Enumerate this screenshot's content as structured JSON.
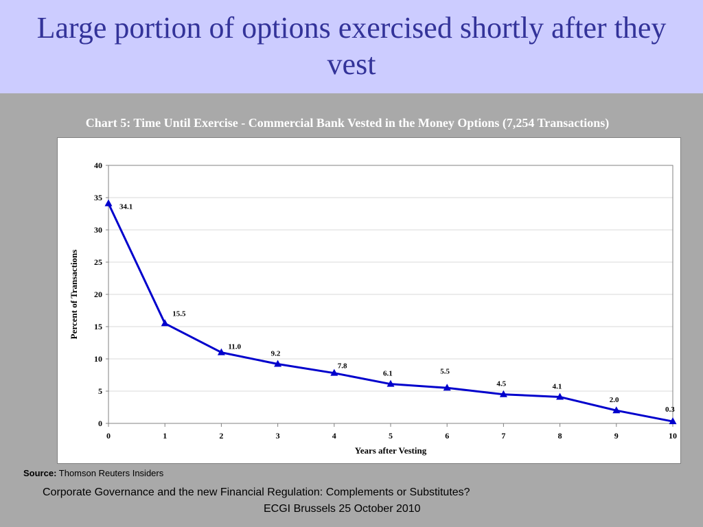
{
  "slide": {
    "title": "Large portion of options exercised shortly after they vest",
    "chart_caption": "Chart 5: Time Until Exercise - Commercial Bank Vested in the Money Options (7,254 Transactions)",
    "source_label": "Source:",
    "source_text": " Thomson Reuters Insiders",
    "footer_line1": "Corporate Governance and the new Financial Regulation: Complements or Substitutes?",
    "footer_line2": "ECGI Brussels 25 October 2010"
  },
  "colors": {
    "title_band": "#ccccff",
    "title_text": "#333399",
    "background": "#a9a9a9",
    "series": "#0000cc"
  },
  "chart_data": {
    "type": "line",
    "title": "Chart 5: Time Until Exercise - Commercial Bank Vested in the Money Options (7,254 Transactions)",
    "xlabel": "Years after Vesting",
    "ylabel": "Percent of Transactions",
    "x": [
      0,
      1,
      2,
      3,
      4,
      5,
      6,
      7,
      8,
      9,
      10
    ],
    "series": [
      {
        "values": [
          34.1,
          15.5,
          11.0,
          9.2,
          7.8,
          6.1,
          5.5,
          4.5,
          4.1,
          2.0,
          0.3
        ],
        "labels": [
          "34.1",
          "15.5",
          "11.0",
          "9.2",
          "7.8",
          "6.1",
          "5.5",
          "4.5",
          "4.1",
          "2.0",
          "0.3"
        ],
        "marker": "triangle",
        "color": "#0000cc"
      }
    ],
    "xlim": [
      0,
      10
    ],
    "ylim": [
      0,
      40
    ],
    "yticks": [
      0,
      5,
      10,
      15,
      20,
      25,
      30,
      35,
      40
    ],
    "xticks": [
      0,
      1,
      2,
      3,
      4,
      5,
      6,
      7,
      8,
      9,
      10
    ],
    "grid": true,
    "legend": "none"
  }
}
